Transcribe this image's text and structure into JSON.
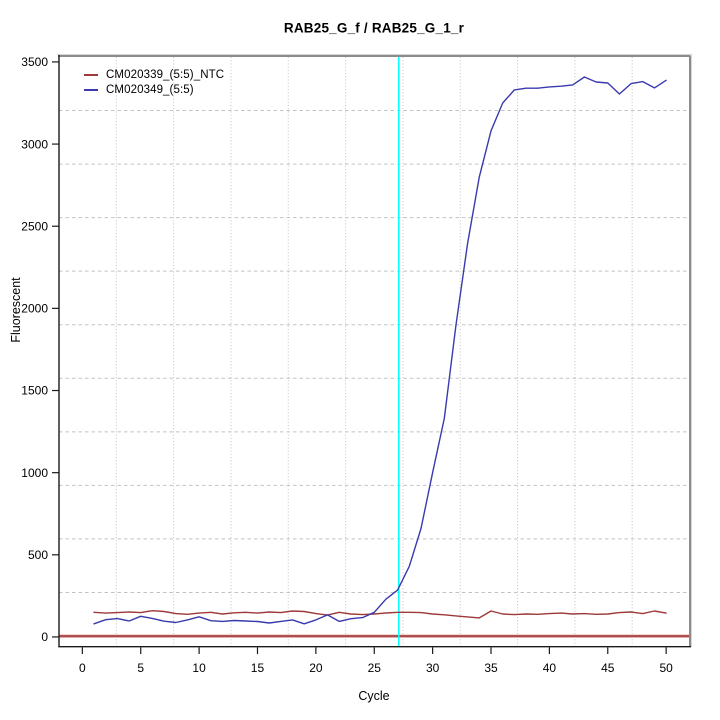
{
  "title": "RAB25_G_f / RAB25_G_1_r",
  "chart_data": {
    "type": "line",
    "title": "RAB25_G_f / RAB25_G_1_r",
    "xlabel": "Cycle",
    "ylabel": "Fluorescent",
    "xlim": [
      -2,
      52
    ],
    "ylim": [
      -55,
      3530
    ],
    "x_ticks": [
      0,
      5,
      10,
      15,
      20,
      25,
      30,
      35,
      40,
      45,
      50
    ],
    "y_ticks": [
      0,
      500,
      1000,
      1500,
      2000,
      2500,
      3000,
      3500
    ],
    "grid": {
      "on": true,
      "nx": 11,
      "ny": 11,
      "color": "#c2c2c2"
    },
    "legend_position": "top-left",
    "x": [
      1,
      2,
      3,
      4,
      5,
      6,
      7,
      8,
      9,
      10,
      11,
      12,
      13,
      14,
      15,
      16,
      17,
      18,
      19,
      20,
      21,
      22,
      23,
      24,
      25,
      26,
      27,
      28,
      29,
      30,
      31,
      32,
      33,
      34,
      35,
      36,
      37,
      38,
      39,
      40,
      41,
      42,
      43,
      44,
      45,
      46,
      47,
      48,
      49,
      50
    ],
    "series": [
      {
        "name": "CM020339_(5:5)_NTC",
        "color": "#9e3939",
        "values": [
          150,
          145,
          148,
          152,
          148,
          160,
          155,
          142,
          138,
          145,
          150,
          140,
          147,
          150,
          145,
          152,
          148,
          158,
          155,
          142,
          133,
          150,
          140,
          136,
          140,
          146,
          150,
          150,
          148,
          140,
          135,
          128,
          122,
          116,
          158,
          140,
          136,
          140,
          138,
          142,
          145,
          140,
          142,
          138,
          140,
          148,
          152,
          142,
          158,
          145
        ]
      },
      {
        "name": "CM020349_(5:5)",
        "color": "#3a3aae",
        "values": [
          80,
          105,
          112,
          97,
          126,
          113,
          96,
          88,
          104,
          123,
          99,
          95,
          100,
          97,
          94,
          85,
          95,
          104,
          80,
          104,
          134,
          95,
          111,
          118,
          150,
          230,
          285,
          430,
          660,
          1000,
          1330,
          1900,
          2400,
          2800,
          3080,
          3250,
          3330,
          3340,
          3340,
          3348,
          3352,
          3360,
          3408,
          3378,
          3372,
          3305,
          3368,
          3380,
          3342,
          3388
        ]
      }
    ],
    "threshold_line": {
      "y": 5,
      "color": "#c06060",
      "core_color": "#9c3c3c"
    },
    "ct_line": {
      "x": 27.1,
      "color": "#00ffff"
    }
  }
}
